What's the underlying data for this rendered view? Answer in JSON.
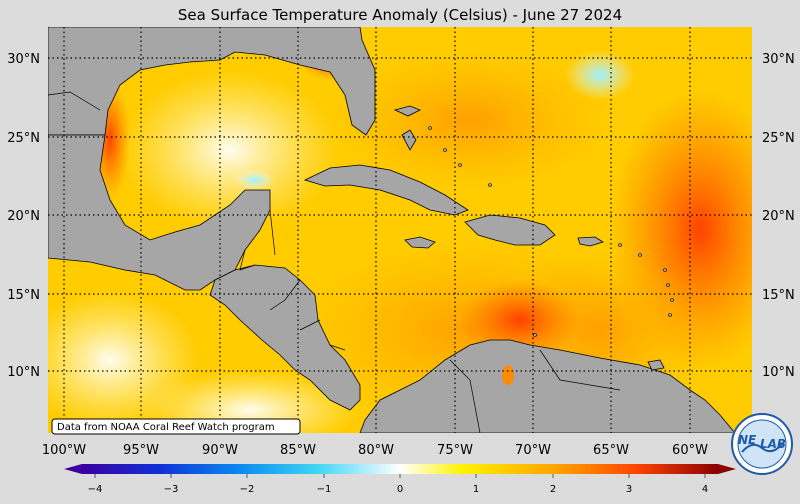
{
  "title": "Sea Surface Temperature Anomaly (Celsius) - June 27 2024",
  "latitude_labels": [
    "30°N",
    "25°N",
    "20°N",
    "15°N",
    "10°N"
  ],
  "longitude_labels": [
    "100°W",
    "95°W",
    "90°W",
    "85°W",
    "80°W",
    "75°W",
    "70°W",
    "65°W",
    "60°W"
  ],
  "colorbar": {
    "min": -4,
    "max": 4,
    "tick_labels": [
      "−4",
      "−3",
      "−2",
      "−1",
      "0",
      "1",
      "2",
      "3",
      "4"
    ],
    "colors": [
      "#3a00a0",
      "#1030d8",
      "#0a8cf0",
      "#40d6f5",
      "#ffffff",
      "#fff200",
      "#ffa000",
      "#ff4500",
      "#d80000",
      "#8b0000"
    ]
  },
  "credit": "Data from NOAA Coral Reef Watch program",
  "logo_text": [
    "NE",
    "LAB"
  ],
  "colors": {
    "land": "#a6a6a6",
    "warm": "#ff8c00",
    "hot": "#ff3a00",
    "mild": "#ffd000"
  }
}
